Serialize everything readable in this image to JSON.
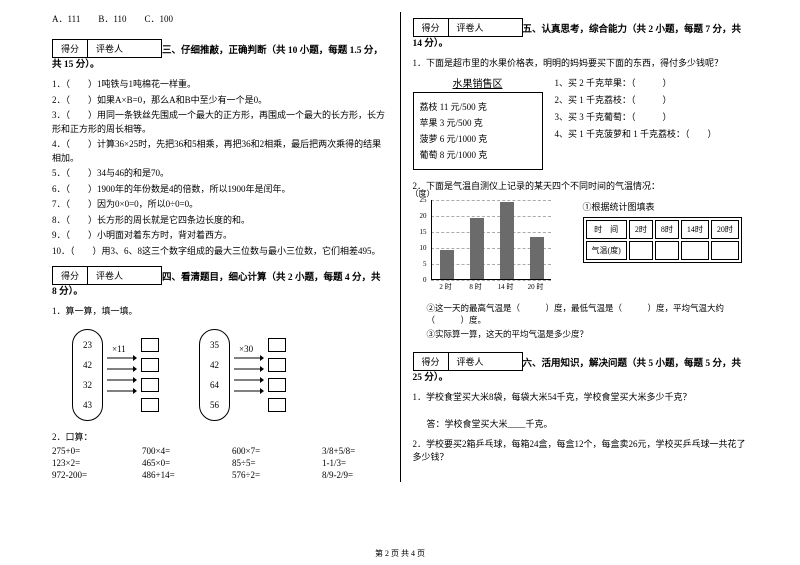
{
  "options": {
    "a": "A．111",
    "b": "B．110",
    "c": "C．100"
  },
  "scoreBox": {
    "score": "得分",
    "reviewer": "评卷人"
  },
  "sections": {
    "s3": "三、仔细推敲，正确判断（共 10 小题，每题 1.5 分，共 15 分）。",
    "s4": "四、看清题目，细心计算（共 2 小题，每题 4 分，共 8 分）。",
    "s5": "五、认真思考，综合能力（共 2 小题，每题 7 分，共 14 分）。",
    "s6": "六、活用知识，解决问题（共 5 小题，每题 5 分，共 25 分）。"
  },
  "judge": [
    "1．（　　）1吨铁与1吨棉花一样重。",
    "2．（　　）如果A×B=0，那么A和B中至少有一个是0。",
    "3．（　　）用同一条铁丝先围成一个最大的正方形，再围成一个最大的长方形，长方形和正方形的周长相等。",
    "4．（　　）计算36×25时，先把36和5相乘，再把36和2相乘，最后把两次乘得的结果相加。",
    "5．（　　）34与46的和是70。",
    "6．（　　）1900年的年份数是4的倍数，所以1900年是闰年。",
    "7．（　　）因为0×0=0，所以0÷0=0。",
    "8．（　　）长方形的周长就是它四条边长度的和。",
    "9．（　　）小明面对着东方时，背对着西方。",
    "10．（　　）用3、6、8这三个数字组成的最大三位数与最小三位数，它们相差495。"
  ],
  "calc": {
    "title": "1．算一算，填一填。",
    "leftNums": [
      "23",
      "42",
      "32",
      "43"
    ],
    "leftMul": "×11",
    "rightNums": [
      "35",
      "42",
      "64",
      "56"
    ],
    "rightMul": "×30",
    "arrowColor": "#000"
  },
  "oral": {
    "title": "2．口算：",
    "rows": [
      [
        "275+0=",
        "700×4=",
        "600×7=",
        "3/8+5/8="
      ],
      [
        "123×2=",
        "465×0=",
        "85÷5=",
        "1-1/3="
      ],
      [
        "972-200=",
        "486+14=",
        "576÷2=",
        "8/9-2/9="
      ]
    ]
  },
  "fruit": {
    "q": "1．下面是超市里的水果价格表，明明的妈妈要买下面的东西，得付多少钱呢？",
    "title": "水果销售区",
    "items": [
      "荔枝 11 元/500 克",
      "苹果 3 元/500 克",
      "菠萝 6 元/1000 克",
      "葡萄 8 元/1000 克"
    ],
    "questions": [
      "1、买 2 千克苹果：（　　　）",
      "2、买 1 千克荔枝：（　　　）",
      "3、买 3 千克葡萄：（　　　）",
      "4、买 1 千克菠萝和 1 千克荔枝：（　　）"
    ]
  },
  "chart": {
    "q": "2．下面是气温自测仪上记录的某天四个不同时间的气温情况：",
    "ylabel": "（度）",
    "yticks": [
      0,
      5,
      10,
      15,
      20,
      25
    ],
    "ylim": [
      0,
      25
    ],
    "xlabels": [
      "2 时",
      "8 时",
      "14 时",
      "20 时"
    ],
    "bars": [
      9,
      19,
      24,
      13
    ],
    "barColor": "#6b6b6b",
    "gridColor": "#bbbbbb",
    "barWidth": 14,
    "tableTitle": "①根据统计图填表",
    "tableHead": [
      "时　间",
      "2时",
      "8时",
      "14时",
      "20时"
    ],
    "tableRow": "气温(度)",
    "sub2": "②这一天的最高气温是（　　　）度，最低气温是（　　　）度，平均气温大约（　　　）度。",
    "sub3": "③实际算一算，这天的平均气温是多少度？"
  },
  "apply": {
    "q1": "1．学校食堂买大米8袋，每袋大米54千克，学校食堂买大米多少千克？",
    "a1": "答：学校食堂买大米____千克。",
    "q2": "2．学校要买2箱乒乓球，每箱24盒，每盒12个，每盒卖26元，学校买乒乓球一共花了多少钱？"
  },
  "footer": "第 2 页 共 4 页"
}
